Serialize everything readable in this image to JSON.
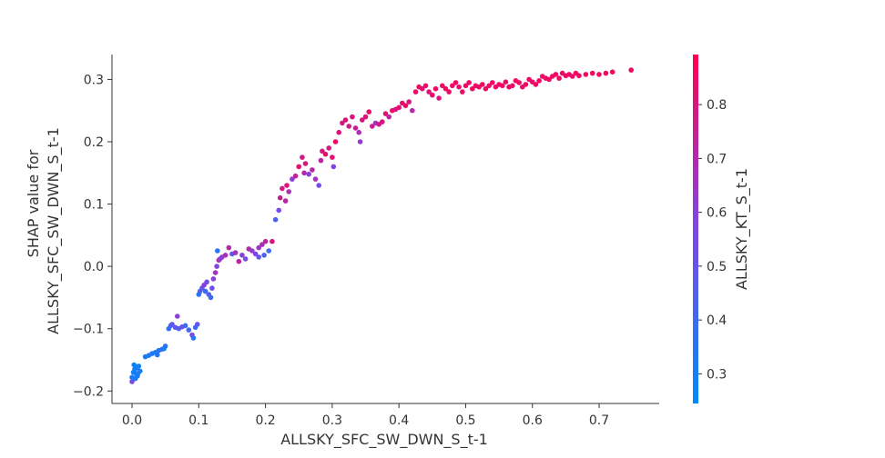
{
  "chart_data": {
    "type": "scatter",
    "xlabel": "ALLSKY_SFC_SW_DWN_S_t-1",
    "ylabel_lines": [
      "SHAP value for",
      "ALLSKY_SFC_SW_DWN_S_t-1"
    ],
    "colorbar_label": "ALLSKY_KT_S_t-1",
    "xlim": [
      -0.03,
      0.79
    ],
    "ylim": [
      -0.22,
      0.34
    ],
    "x_ticks": [
      0.0,
      0.1,
      0.2,
      0.3,
      0.4,
      0.5,
      0.6,
      0.7
    ],
    "x_tick_labels": [
      "0.0",
      "0.1",
      "0.2",
      "0.3",
      "0.4",
      "0.5",
      "0.6",
      "0.7"
    ],
    "y_ticks": [
      -0.2,
      -0.1,
      0.0,
      0.1,
      0.2,
      0.3
    ],
    "y_tick_labels": [
      "−0.2",
      "−0.1",
      "0.0",
      "0.1",
      "0.2",
      "0.3"
    ],
    "color_range": [
      0.245,
      0.893
    ],
    "color_ticks": [
      0.3,
      0.4,
      0.5,
      0.6,
      0.7,
      0.8
    ],
    "color_tick_labels": [
      "0.3",
      "0.4",
      "0.5",
      "0.6",
      "0.7",
      "0.8"
    ],
    "colormap": [
      "#008afb",
      "#7e47e6",
      "#ff0052"
    ],
    "grid": false,
    "points": [
      [
        0.0,
        -0.185,
        0.55
      ],
      [
        0.0,
        -0.178,
        0.3
      ],
      [
        0.002,
        -0.17,
        0.28
      ],
      [
        0.004,
        -0.165,
        0.3
      ],
      [
        0.003,
        -0.158,
        0.27
      ],
      [
        0.006,
        -0.172,
        0.32
      ],
      [
        0.008,
        -0.176,
        0.29
      ],
      [
        0.01,
        -0.16,
        0.3
      ],
      [
        0.012,
        -0.168,
        0.31
      ],
      [
        0.005,
        -0.18,
        0.33
      ],
      [
        0.007,
        -0.163,
        0.29
      ],
      [
        0.009,
        -0.172,
        0.3
      ],
      [
        0.02,
        -0.145,
        0.31
      ],
      [
        0.025,
        -0.143,
        0.3
      ],
      [
        0.03,
        -0.14,
        0.33
      ],
      [
        0.035,
        -0.138,
        0.32
      ],
      [
        0.038,
        -0.142,
        0.35
      ],
      [
        0.04,
        -0.135,
        0.34
      ],
      [
        0.045,
        -0.133,
        0.38
      ],
      [
        0.05,
        -0.128,
        0.34
      ],
      [
        0.048,
        -0.132,
        0.31
      ],
      [
        0.055,
        -0.1,
        0.35
      ],
      [
        0.058,
        -0.095,
        0.42
      ],
      [
        0.06,
        -0.093,
        0.48
      ],
      [
        0.065,
        -0.098,
        0.5
      ],
      [
        0.068,
        -0.08,
        0.6
      ],
      [
        0.07,
        -0.1,
        0.44
      ],
      [
        0.075,
        -0.097,
        0.52
      ],
      [
        0.08,
        -0.095,
        0.38
      ],
      [
        0.085,
        -0.102,
        0.41
      ],
      [
        0.09,
        -0.11,
        0.55
      ],
      [
        0.092,
        -0.115,
        0.36
      ],
      [
        0.095,
        -0.098,
        0.4
      ],
      [
        0.098,
        -0.093,
        0.5
      ],
      [
        0.1,
        -0.045,
        0.35
      ],
      [
        0.102,
        -0.04,
        0.42
      ],
      [
        0.105,
        -0.035,
        0.5
      ],
      [
        0.108,
        -0.03,
        0.6
      ],
      [
        0.11,
        -0.04,
        0.38
      ],
      [
        0.112,
        -0.025,
        0.55
      ],
      [
        0.115,
        -0.045,
        0.45
      ],
      [
        0.118,
        -0.05,
        0.4
      ],
      [
        0.12,
        -0.035,
        0.52
      ],
      [
        0.122,
        -0.02,
        0.6
      ],
      [
        0.125,
        -0.01,
        0.65
      ],
      [
        0.127,
        0.0,
        0.58
      ],
      [
        0.13,
        0.01,
        0.7
      ],
      [
        0.128,
        0.025,
        0.36
      ],
      [
        0.132,
        0.012,
        0.62
      ],
      [
        0.135,
        0.015,
        0.6
      ],
      [
        0.14,
        0.018,
        0.68
      ],
      [
        0.145,
        0.03,
        0.7
      ],
      [
        0.15,
        0.02,
        0.5
      ],
      [
        0.155,
        0.022,
        0.66
      ],
      [
        0.16,
        0.008,
        0.72
      ],
      [
        0.165,
        0.018,
        0.6
      ],
      [
        0.17,
        0.012,
        0.55
      ],
      [
        0.175,
        0.028,
        0.7
      ],
      [
        0.18,
        0.025,
        0.62
      ],
      [
        0.185,
        0.02,
        0.58
      ],
      [
        0.19,
        0.03,
        0.65
      ],
      [
        0.195,
        0.035,
        0.68
      ],
      [
        0.2,
        0.04,
        0.72
      ],
      [
        0.19,
        0.015,
        0.5
      ],
      [
        0.198,
        0.018,
        0.45
      ],
      [
        0.205,
        0.025,
        0.4
      ],
      [
        0.21,
        0.04,
        0.8
      ],
      [
        0.215,
        0.075,
        0.45
      ],
      [
        0.22,
        0.09,
        0.55
      ],
      [
        0.222,
        0.11,
        0.75
      ],
      [
        0.225,
        0.125,
        0.78
      ],
      [
        0.23,
        0.105,
        0.72
      ],
      [
        0.232,
        0.13,
        0.8
      ],
      [
        0.235,
        0.12,
        0.68
      ],
      [
        0.24,
        0.14,
        0.6
      ],
      [
        0.245,
        0.145,
        0.75
      ],
      [
        0.25,
        0.16,
        0.82
      ],
      [
        0.255,
        0.175,
        0.78
      ],
      [
        0.258,
        0.15,
        0.7
      ],
      [
        0.26,
        0.165,
        0.8
      ],
      [
        0.265,
        0.148,
        0.6
      ],
      [
        0.27,
        0.155,
        0.72
      ],
      [
        0.275,
        0.14,
        0.66
      ],
      [
        0.28,
        0.13,
        0.55
      ],
      [
        0.283,
        0.17,
        0.72
      ],
      [
        0.285,
        0.185,
        0.8
      ],
      [
        0.29,
        0.18,
        0.84
      ],
      [
        0.295,
        0.19,
        0.78
      ],
      [
        0.3,
        0.175,
        0.82
      ],
      [
        0.302,
        0.16,
        0.58
      ],
      [
        0.305,
        0.2,
        0.85
      ],
      [
        0.31,
        0.215,
        0.8
      ],
      [
        0.315,
        0.23,
        0.78
      ],
      [
        0.32,
        0.235,
        0.82
      ],
      [
        0.325,
        0.225,
        0.78
      ],
      [
        0.33,
        0.24,
        0.8
      ],
      [
        0.335,
        0.222,
        0.74
      ],
      [
        0.34,
        0.215,
        0.68
      ],
      [
        0.342,
        0.2,
        0.62
      ],
      [
        0.345,
        0.235,
        0.8
      ],
      [
        0.35,
        0.24,
        0.82
      ],
      [
        0.355,
        0.248,
        0.84
      ],
      [
        0.36,
        0.225,
        0.75
      ],
      [
        0.365,
        0.23,
        0.66
      ],
      [
        0.37,
        0.228,
        0.78
      ],
      [
        0.375,
        0.232,
        0.8
      ],
      [
        0.38,
        0.245,
        0.82
      ],
      [
        0.385,
        0.24,
        0.72
      ],
      [
        0.39,
        0.25,
        0.85
      ],
      [
        0.395,
        0.252,
        0.8
      ],
      [
        0.4,
        0.255,
        0.82
      ],
      [
        0.405,
        0.262,
        0.84
      ],
      [
        0.41,
        0.258,
        0.86
      ],
      [
        0.415,
        0.264,
        0.8
      ],
      [
        0.42,
        0.25,
        0.7
      ],
      [
        0.425,
        0.28,
        0.84
      ],
      [
        0.43,
        0.288,
        0.86
      ],
      [
        0.435,
        0.285,
        0.82
      ],
      [
        0.44,
        0.29,
        0.85
      ],
      [
        0.445,
        0.28,
        0.8
      ],
      [
        0.45,
        0.275,
        0.84
      ],
      [
        0.455,
        0.285,
        0.86
      ],
      [
        0.46,
        0.27,
        0.8
      ],
      [
        0.465,
        0.29,
        0.85
      ],
      [
        0.47,
        0.285,
        0.86
      ],
      [
        0.475,
        0.28,
        0.84
      ],
      [
        0.48,
        0.29,
        0.84
      ],
      [
        0.485,
        0.295,
        0.86
      ],
      [
        0.49,
        0.288,
        0.82
      ],
      [
        0.495,
        0.28,
        0.84
      ],
      [
        0.5,
        0.29,
        0.86
      ],
      [
        0.505,
        0.295,
        0.84
      ],
      [
        0.51,
        0.285,
        0.85
      ],
      [
        0.515,
        0.29,
        0.86
      ],
      [
        0.52,
        0.288,
        0.84
      ],
      [
        0.525,
        0.292,
        0.86
      ],
      [
        0.53,
        0.285,
        0.86
      ],
      [
        0.535,
        0.29,
        0.84
      ],
      [
        0.54,
        0.295,
        0.86
      ],
      [
        0.545,
        0.288,
        0.84
      ],
      [
        0.55,
        0.292,
        0.86
      ],
      [
        0.555,
        0.29,
        0.86
      ],
      [
        0.56,
        0.296,
        0.85
      ],
      [
        0.565,
        0.288,
        0.86
      ],
      [
        0.57,
        0.29,
        0.84
      ],
      [
        0.575,
        0.298,
        0.86
      ],
      [
        0.58,
        0.295,
        0.86
      ],
      [
        0.585,
        0.288,
        0.84
      ],
      [
        0.59,
        0.292,
        0.86
      ],
      [
        0.595,
        0.3,
        0.86
      ],
      [
        0.6,
        0.296,
        0.84
      ],
      [
        0.605,
        0.292,
        0.86
      ],
      [
        0.61,
        0.298,
        0.86
      ],
      [
        0.615,
        0.305,
        0.85
      ],
      [
        0.62,
        0.302,
        0.86
      ],
      [
        0.625,
        0.3,
        0.86
      ],
      [
        0.63,
        0.305,
        0.84
      ],
      [
        0.635,
        0.308,
        0.86
      ],
      [
        0.64,
        0.302,
        0.86
      ],
      [
        0.645,
        0.31,
        0.85
      ],
      [
        0.65,
        0.306,
        0.86
      ],
      [
        0.655,
        0.308,
        0.86
      ],
      [
        0.66,
        0.305,
        0.84
      ],
      [
        0.665,
        0.31,
        0.86
      ],
      [
        0.67,
        0.306,
        0.86
      ],
      [
        0.68,
        0.308,
        0.86
      ],
      [
        0.69,
        0.31,
        0.86
      ],
      [
        0.7,
        0.308,
        0.86
      ],
      [
        0.71,
        0.31,
        0.86
      ],
      [
        0.72,
        0.312,
        0.86
      ],
      [
        0.748,
        0.315,
        0.86
      ]
    ]
  }
}
